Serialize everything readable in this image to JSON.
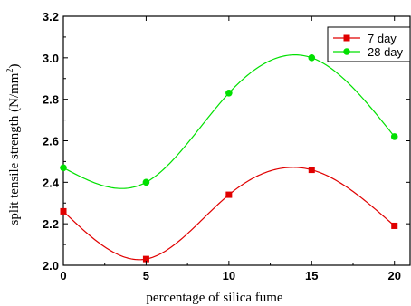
{
  "chart_data": {
    "type": "line",
    "xlabel": "percentage of silica fume",
    "ylabel": "split tensile strength (N/mm",
    "ylabel_superscript": "2",
    "ylabel_suffix": ")",
    "xlim": [
      0,
      21
    ],
    "ylim": [
      2.0,
      3.2
    ],
    "xticks": [
      "0",
      "5",
      "10",
      "15",
      "20"
    ],
    "xtick_values": [
      0,
      5,
      10,
      15,
      20
    ],
    "yticks": [
      "2.0",
      "2.2",
      "2.4",
      "2.6",
      "2.8",
      "3.0",
      "3.2"
    ],
    "ytick_values": [
      2.0,
      2.2,
      2.4,
      2.6,
      2.8,
      3.0,
      3.2
    ],
    "grid": false,
    "legend_position": "top-right",
    "series": [
      {
        "name": "7 day",
        "color": "#e00000",
        "marker": "square",
        "x": [
          0,
          5,
          10,
          15,
          20
        ],
        "y": [
          2.26,
          2.03,
          2.34,
          2.46,
          2.19
        ]
      },
      {
        "name": "28 day",
        "color": "#00e000",
        "marker": "circle",
        "x": [
          0,
          5,
          10,
          15,
          20
        ],
        "y": [
          2.47,
          2.4,
          2.83,
          3.0,
          2.62
        ]
      }
    ]
  }
}
